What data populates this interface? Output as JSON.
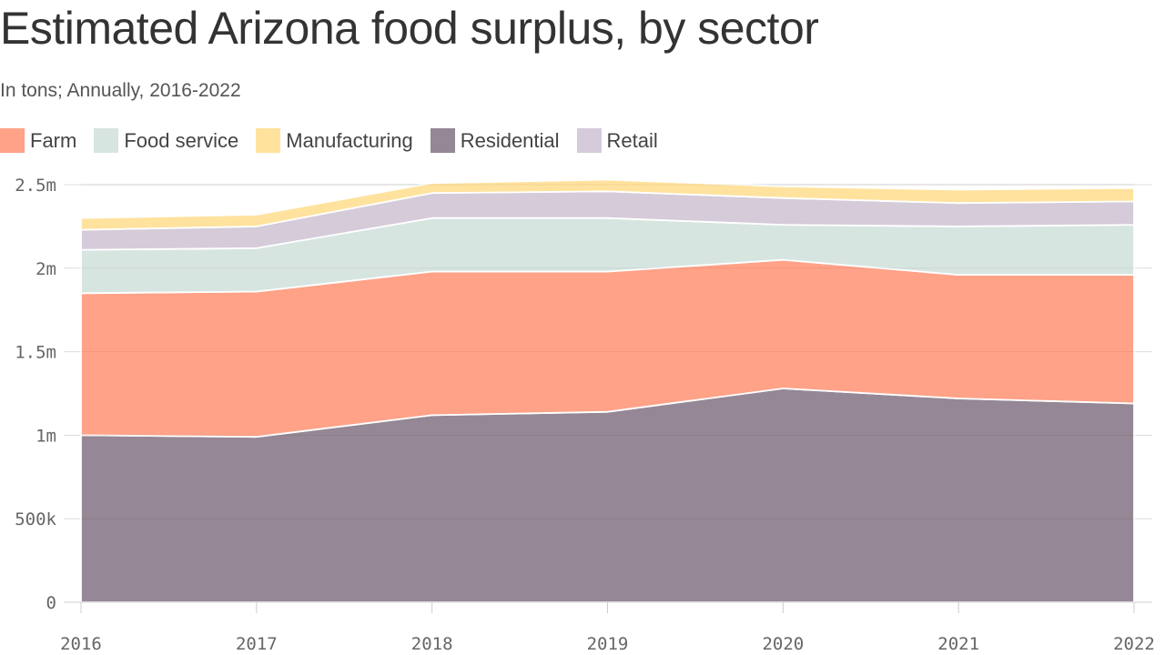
{
  "title": "Estimated Arizona food surplus, by sector",
  "subtitle": "In tons; Annually, 2016-2022",
  "colors": {
    "Farm": "#ffa288",
    "Food service": "#d7e5e1",
    "Manufacturing": "#ffe29d",
    "Residential": "#958795",
    "Retail": "#d5cbd9"
  },
  "legend": [
    "Farm",
    "Food service",
    "Manufacturing",
    "Residential",
    "Retail"
  ],
  "chart_data": {
    "type": "area",
    "stacked": true,
    "title": "Estimated Arizona food surplus, by sector",
    "subtitle": "In tons; Annually, 2016-2022",
    "x": [
      2016,
      2017,
      2018,
      2019,
      2020,
      2021,
      2022
    ],
    "x_tick_labels": [
      "2016",
      "2017",
      "2018",
      "2019",
      "2020",
      "2021",
      "2022"
    ],
    "ylim": [
      0,
      2500000
    ],
    "y_ticks": [
      0,
      500000,
      1000000,
      1500000,
      2000000,
      2500000
    ],
    "y_tick_labels": [
      "0",
      "500k",
      "1m",
      "1.5m",
      "2m",
      "2.5m"
    ],
    "grid": true,
    "legend_position": "top-left",
    "stack_order": [
      "Residential",
      "Farm",
      "Food service",
      "Retail",
      "Manufacturing"
    ],
    "series": [
      {
        "name": "Residential",
        "values": [
          1000000,
          990000,
          1120000,
          1140000,
          1280000,
          1220000,
          1190000
        ]
      },
      {
        "name": "Farm",
        "values": [
          850000,
          870000,
          860000,
          840000,
          770000,
          740000,
          770000
        ]
      },
      {
        "name": "Food service",
        "values": [
          260000,
          260000,
          320000,
          320000,
          210000,
          290000,
          300000
        ]
      },
      {
        "name": "Retail",
        "values": [
          120000,
          130000,
          150000,
          160000,
          160000,
          140000,
          140000
        ]
      },
      {
        "name": "Manufacturing",
        "values": [
          70000,
          70000,
          60000,
          70000,
          70000,
          80000,
          80000
        ]
      }
    ]
  }
}
